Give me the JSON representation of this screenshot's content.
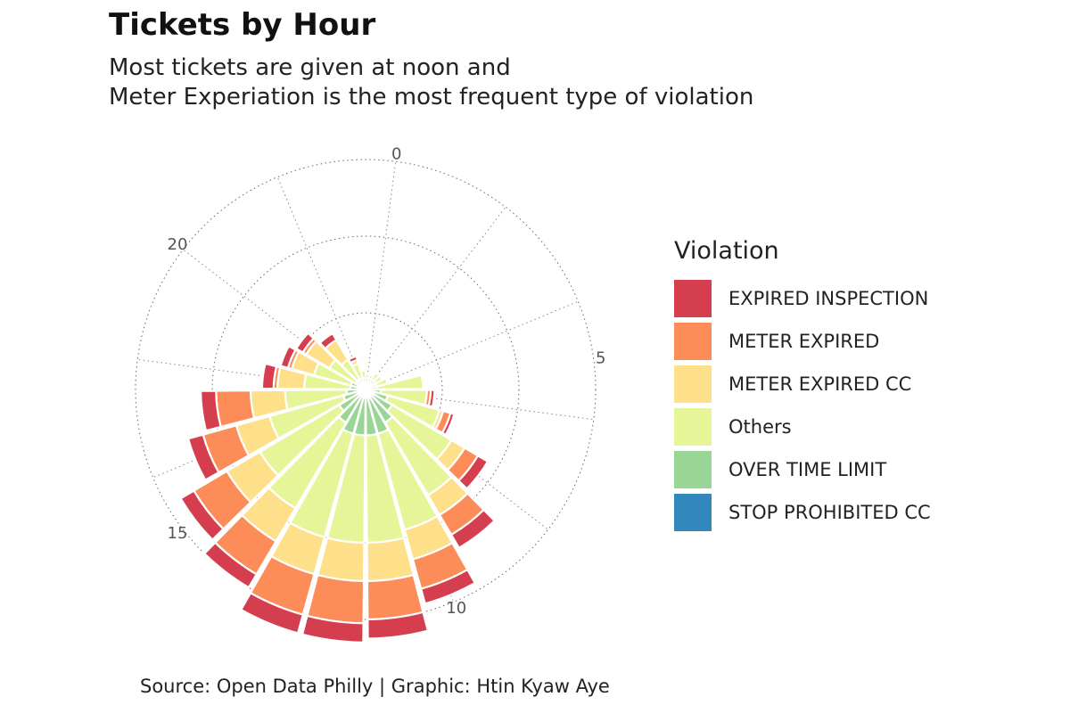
{
  "title": "Tickets by Hour",
  "subtitle": [
    "Most tickets are given at noon and",
    "Meter Experiation is the most frequent type of violation"
  ],
  "caption": "Source: Open Data Philly | Graphic: Htin Kyaw Aye",
  "legend": {
    "title": "Violation",
    "items": [
      {
        "label": "EXPIRED INSPECTION",
        "color": "#d53e4f"
      },
      {
        "label": "METER EXPIRED",
        "color": "#fc8d59"
      },
      {
        "label": "METER EXPIRED CC",
        "color": "#fee08b"
      },
      {
        "label": "Others",
        "color": "#e6f598"
      },
      {
        "label": "OVER TIME LIMIT",
        "color": "#99d594"
      },
      {
        "label": "STOP PROHIBITED CC",
        "color": "#3288bd"
      }
    ]
  },
  "chart_data": {
    "type": "bar",
    "coord": "polar",
    "stacked": true,
    "x": [
      0,
      1,
      2,
      3,
      4,
      5,
      6,
      7,
      8,
      9,
      10,
      11,
      12,
      13,
      14,
      15,
      16,
      17,
      18,
      19,
      20,
      21,
      22,
      23
    ],
    "theta_ticks": [
      0,
      5,
      10,
      15,
      20
    ],
    "grid_rings": 3,
    "legend_position": "right",
    "series": [
      {
        "name": "STOP PROHIBITED CC",
        "color": "#3288bd",
        "values": [
          0.1,
          0.1,
          0.1,
          0.1,
          0.1,
          0.1,
          0.1,
          0.1,
          0.1,
          0.1,
          0.1,
          0.1,
          0.1,
          0.1,
          0.1,
          0.1,
          0.1,
          0.1,
          0.1,
          0.1,
          0.1,
          0.1,
          0.1,
          0.1
        ]
      },
      {
        "name": "OVER TIME LIMIT",
        "color": "#99d594",
        "values": [
          0.05,
          0.05,
          0.05,
          0.05,
          0.05,
          0.05,
          0.1,
          0.2,
          0.3,
          0.4,
          0.5,
          0.5,
          0.5,
          0.5,
          0.4,
          0.3,
          0.2,
          0.15,
          0.1,
          0.1,
          0.05,
          0.05,
          0.05,
          0.05
        ]
      },
      {
        "name": "Others",
        "color": "#e6f598",
        "values": [
          0.05,
          0.05,
          0.1,
          0.1,
          0.15,
          0.6,
          0.6,
          0.7,
          0.9,
          1.1,
          1.3,
          1.4,
          1.4,
          1.4,
          1.3,
          1.2,
          1.0,
          0.8,
          0.6,
          0.5,
          0.4,
          0.3,
          0.2,
          0.1
        ]
      },
      {
        "name": "METER EXPIRED CC",
        "color": "#fee08b",
        "values": [
          0,
          0,
          0,
          0,
          0,
          0,
          0,
          0.05,
          0.2,
          0.3,
          0.4,
          0.5,
          0.5,
          0.5,
          0.5,
          0.5,
          0.45,
          0.45,
          0.35,
          0.3,
          0.35,
          0.3,
          0.05,
          0
        ]
      },
      {
        "name": "METER EXPIRED",
        "color": "#fc8d59",
        "values": [
          0,
          0,
          0,
          0,
          0,
          0,
          0.05,
          0.1,
          0.2,
          0.3,
          0.4,
          0.5,
          0.55,
          0.55,
          0.5,
          0.5,
          0.45,
          0.45,
          0.05,
          0.05,
          0.05,
          0,
          0,
          0
        ]
      },
      {
        "name": "EXPIRED INSPECTION",
        "color": "#d53e4f",
        "values": [
          0,
          0,
          0,
          0,
          0,
          0,
          0.05,
          0.05,
          0.15,
          0.2,
          0.2,
          0.25,
          0.25,
          0.25,
          0.2,
          0.2,
          0.2,
          0.2,
          0.15,
          0.1,
          0.1,
          0.1,
          0.05,
          0
        ]
      }
    ]
  }
}
